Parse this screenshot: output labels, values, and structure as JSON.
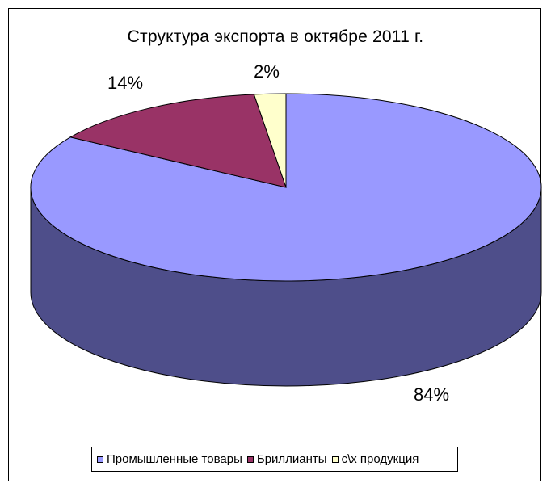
{
  "chart_data": {
    "type": "pie",
    "title": "Структура экспорта в октябре 2011 г.",
    "slices": [
      {
        "name": "Промышленные товары",
        "value": 84,
        "label": "84%",
        "color": "#9999ff",
        "side_color": "#4e4e8a"
      },
      {
        "name": "Бриллианты",
        "value": 14,
        "label": "14%",
        "color": "#993366",
        "side_color": "#5a1e3c"
      },
      {
        "name": "с\\х продукция",
        "value": 2,
        "label": "2%",
        "color": "#ffffcc",
        "side_color": "#b8b890"
      }
    ],
    "legend_position": "bottom",
    "three_d": true
  }
}
